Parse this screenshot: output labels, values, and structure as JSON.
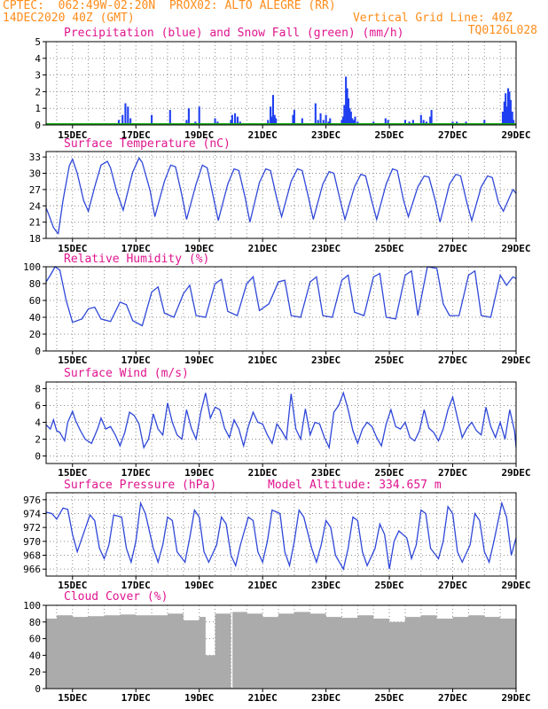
{
  "header": {
    "line1_left": "CPTEC:  062:49W-02:20N  PROX02: ALTO ALEGRE (RR)",
    "line2_left": "14DEC2020 40Z (GMT)",
    "line2_right": "Vertical Grid Line: 40Z",
    "line3_right": "TQ0126L028",
    "model_altitude": "Model Altitude: 334.657 m"
  },
  "colors": {
    "header": "#ff8c1a",
    "title": "#e0158f",
    "line": "#2f47d8",
    "precip": "#1f3ff0",
    "snow": "#18a818",
    "cloud": "#ababab"
  },
  "x_tick_labels": [
    "15DEC",
    "17DEC",
    "19DEC",
    "21DEC",
    "23DEC",
    "25DEC",
    "27DEC",
    "29DEC"
  ],
  "chart_data": [
    {
      "type": "bar",
      "title": "Precipitation (blue) and Snow Fall (green) (mm/h)",
      "xlim": [
        14.1667,
        29.0
      ],
      "ylim": [
        0,
        5
      ],
      "yticks": [
        "0",
        "1",
        "2",
        "3",
        "4",
        "5"
      ],
      "series": [
        {
          "name": "Precipitation",
          "x": [
            16.46,
            16.58,
            16.67,
            16.75,
            16.83,
            17.5,
            18.08,
            18.6,
            18.67,
            18.88,
            19.0,
            19.5,
            19.58,
            20.0,
            20.04,
            20.13,
            20.21,
            20.29,
            21.17,
            21.25,
            21.29,
            21.33,
            21.38,
            21.42,
            21.96,
            22.0,
            22.25,
            22.67,
            22.75,
            22.83,
            22.92,
            23.0,
            23.08,
            23.13,
            23.5,
            23.54,
            23.58,
            23.63,
            23.67,
            23.71,
            23.75,
            23.79,
            23.83,
            23.88,
            23.92,
            24.0,
            24.5,
            24.88,
            24.96,
            25.5,
            25.63,
            25.75,
            26.0,
            26.08,
            26.17,
            26.29,
            26.33,
            27.0,
            27.13,
            27.42,
            28.0,
            28.58,
            28.63,
            28.67,
            28.71,
            28.75,
            28.79,
            28.83,
            28.88,
            28.92
          ],
          "values": [
            0.3,
            0.6,
            1.3,
            1.1,
            0.4,
            0.6,
            0.9,
            0.3,
            1.0,
            0.2,
            1.1,
            0.4,
            0.2,
            0.3,
            0.6,
            0.7,
            0.5,
            0.2,
            0.3,
            1.1,
            0.5,
            1.8,
            0.6,
            0.4,
            0.6,
            0.9,
            0.4,
            1.3,
            0.3,
            0.7,
            0.3,
            0.6,
            0.2,
            0.4,
            0.3,
            0.5,
            1.2,
            2.9,
            2.2,
            1.6,
            1.0,
            0.8,
            0.4,
            0.3,
            0.5,
            0.2,
            0.2,
            0.4,
            0.3,
            0.3,
            0.2,
            0.3,
            0.6,
            0.3,
            0.2,
            0.5,
            0.9,
            0.2,
            0.2,
            0.2,
            0.3,
            0.8,
            1.4,
            1.9,
            1.1,
            2.2,
            2.0,
            1.5,
            0.8,
            0.3
          ]
        },
        {
          "name": "Snow Fall",
          "x": [
            14.1667,
            29.0
          ],
          "values": [
            0,
            0
          ]
        }
      ]
    },
    {
      "type": "line",
      "title": "Surface Temperature (nC)",
      "xlim": [
        14.1667,
        29.0
      ],
      "ylim": [
        18,
        34
      ],
      "yticks": [
        "18",
        "21",
        "24",
        "27",
        "30",
        "33"
      ],
      "series": [
        {
          "name": "Surface Temperature",
          "x": [
            14.1667,
            14.25,
            14.4,
            14.5,
            14.55,
            14.7,
            14.9,
            15.0,
            15.15,
            15.35,
            15.5,
            15.7,
            15.9,
            16.1,
            16.2,
            16.4,
            16.6,
            16.9,
            17.1,
            17.2,
            17.45,
            17.6,
            17.9,
            18.1,
            18.25,
            18.45,
            18.6,
            18.9,
            19.1,
            19.25,
            19.45,
            19.6,
            19.9,
            20.1,
            20.25,
            20.45,
            20.6,
            20.9,
            21.1,
            21.25,
            21.45,
            21.6,
            21.9,
            22.1,
            22.25,
            22.45,
            22.6,
            22.9,
            23.1,
            23.25,
            23.45,
            23.6,
            23.9,
            24.1,
            24.25,
            24.45,
            24.6,
            24.9,
            25.1,
            25.25,
            25.45,
            25.6,
            25.9,
            26.1,
            26.25,
            26.45,
            26.6,
            26.9,
            27.1,
            27.25,
            27.45,
            27.6,
            27.9,
            28.1,
            28.25,
            28.45,
            28.6,
            28.9,
            29.0
          ],
          "values": [
            23.6,
            22.4,
            20.0,
            19.2,
            18.9,
            25.0,
            31.4,
            32.6,
            30.0,
            25.0,
            23.0,
            27.5,
            31.5,
            32.2,
            31.0,
            26.5,
            23.2,
            30.2,
            32.8,
            32.0,
            26.8,
            22.0,
            28.5,
            31.5,
            31.2,
            26.0,
            21.5,
            28.0,
            31.5,
            31.0,
            25.5,
            21.3,
            28.0,
            30.8,
            30.5,
            25.5,
            21.0,
            28.3,
            30.8,
            30.5,
            25.3,
            22.0,
            28.5,
            30.8,
            30.5,
            25.5,
            21.5,
            28.0,
            30.3,
            30.0,
            25.0,
            21.5,
            27.5,
            29.8,
            29.5,
            24.8,
            21.5,
            28.0,
            30.8,
            30.5,
            25.0,
            22.0,
            27.5,
            29.5,
            29.3,
            25.0,
            21.0,
            28.0,
            29.8,
            29.5,
            24.5,
            21.3,
            27.5,
            29.5,
            29.2,
            24.5,
            23.0,
            27.0,
            26.3
          ]
        }
      ]
    },
    {
      "type": "line",
      "title": "Relative Humidity (%)",
      "xlim": [
        14.1667,
        29.0
      ],
      "ylim": [
        0,
        100
      ],
      "yticks": [
        "0",
        "20",
        "40",
        "60",
        "80",
        "100"
      ],
      "series": [
        {
          "name": "Relative Humidity",
          "x": [
            14.1667,
            14.3,
            14.45,
            14.6,
            14.8,
            15.0,
            15.3,
            15.5,
            15.7,
            15.9,
            16.2,
            16.5,
            16.7,
            16.9,
            17.2,
            17.5,
            17.7,
            17.9,
            18.2,
            18.5,
            18.7,
            18.9,
            19.2,
            19.5,
            19.7,
            19.9,
            20.2,
            20.5,
            20.7,
            20.9,
            21.2,
            21.5,
            21.7,
            21.9,
            22.2,
            22.5,
            22.7,
            22.9,
            23.2,
            23.5,
            23.7,
            23.9,
            24.2,
            24.5,
            24.7,
            24.9,
            25.2,
            25.5,
            25.7,
            25.9,
            26.2,
            26.5,
            26.7,
            26.9,
            27.2,
            27.5,
            27.7,
            27.9,
            28.2,
            28.5,
            28.7,
            28.9,
            29.0
          ],
          "values": [
            82,
            90,
            100,
            96,
            60,
            34,
            38,
            50,
            52,
            38,
            35,
            58,
            55,
            36,
            30,
            70,
            76,
            45,
            40,
            68,
            78,
            42,
            40,
            80,
            85,
            47,
            42,
            80,
            88,
            48,
            56,
            82,
            84,
            42,
            40,
            82,
            88,
            42,
            40,
            84,
            90,
            46,
            42,
            88,
            92,
            40,
            38,
            90,
            95,
            42,
            100,
            98,
            56,
            42,
            42,
            90,
            95,
            42,
            40,
            90,
            78,
            88,
            86
          ]
        }
      ]
    },
    {
      "type": "line",
      "title": "Surface Wind (m/s)",
      "xlim": [
        14.1667,
        29.0
      ],
      "ylim": [
        -0.9,
        8.8
      ],
      "yticks": [
        "0",
        "2",
        "4",
        "6",
        "8"
      ],
      "series": [
        {
          "name": "Surface Wind",
          "x": [
            14.1667,
            14.3,
            14.4,
            14.5,
            14.6,
            14.75,
            14.85,
            15.0,
            15.1,
            15.25,
            15.4,
            15.6,
            15.8,
            15.9,
            16.05,
            16.2,
            16.35,
            16.5,
            16.65,
            16.8,
            16.95,
            17.1,
            17.25,
            17.4,
            17.55,
            17.7,
            17.85,
            18.0,
            18.15,
            18.3,
            18.45,
            18.6,
            18.75,
            18.9,
            19.05,
            19.2,
            19.35,
            19.5,
            19.65,
            19.8,
            19.95,
            20.1,
            20.25,
            20.4,
            20.55,
            20.7,
            20.85,
            21.0,
            21.15,
            21.3,
            21.45,
            21.6,
            21.75,
            21.9,
            22.05,
            22.2,
            22.35,
            22.5,
            22.65,
            22.8,
            22.95,
            23.1,
            23.25,
            23.4,
            23.55,
            23.7,
            23.85,
            24.0,
            24.15,
            24.3,
            24.45,
            24.6,
            24.75,
            24.9,
            25.05,
            25.2,
            25.35,
            25.5,
            25.65,
            25.8,
            25.95,
            26.1,
            26.25,
            26.4,
            26.55,
            26.7,
            26.85,
            27.0,
            27.15,
            27.3,
            27.45,
            27.6,
            27.75,
            27.9,
            28.05,
            28.2,
            28.35,
            28.5,
            28.65,
            28.8,
            28.95,
            29.0
          ],
          "values": [
            3.7,
            3.2,
            4.3,
            3.0,
            2.8,
            1.8,
            4.0,
            5.3,
            4.2,
            3.0,
            2.0,
            1.5,
            3.3,
            4.5,
            3.2,
            3.5,
            2.5,
            1.2,
            2.8,
            5.2,
            4.8,
            3.8,
            1.0,
            2.0,
            5.0,
            3.2,
            2.5,
            6.3,
            4.0,
            2.5,
            2.0,
            5.5,
            3.3,
            2.0,
            5.2,
            7.5,
            4.5,
            5.8,
            5.5,
            3.3,
            2.2,
            4.3,
            3.2,
            1.2,
            3.5,
            5.2,
            4.0,
            3.8,
            2.5,
            1.5,
            3.8,
            3.0,
            2.0,
            7.4,
            3.2,
            2.0,
            5.6,
            2.5,
            4.0,
            3.8,
            2.2,
            1.0,
            5.2,
            6.0,
            7.5,
            5.5,
            3.0,
            1.5,
            3.2,
            4.0,
            3.5,
            2.2,
            1.2,
            3.8,
            5.5,
            3.5,
            3.2,
            4.0,
            2.2,
            1.8,
            3.0,
            5.5,
            3.3,
            2.8,
            1.8,
            3.2,
            5.5,
            7.0,
            4.5,
            2.2,
            3.3,
            4.0,
            3.0,
            2.5,
            5.8,
            3.5,
            2.2,
            4.0,
            2.0,
            5.5,
            3.0,
            1.0
          ]
        }
      ]
    },
    {
      "type": "line",
      "title": "Surface Pressure (hPa)",
      "xlim": [
        14.1667,
        29.0
      ],
      "ylim": [
        965,
        977
      ],
      "yticks": [
        "966",
        "968",
        "970",
        "972",
        "974",
        "976"
      ],
      "series": [
        {
          "name": "Surface Pressure",
          "x": [
            14.1667,
            14.35,
            14.5,
            14.7,
            14.85,
            15.0,
            15.15,
            15.3,
            15.55,
            15.7,
            15.85,
            16.0,
            16.15,
            16.3,
            16.55,
            16.7,
            16.85,
            17.0,
            17.15,
            17.3,
            17.55,
            17.7,
            17.85,
            18.0,
            18.15,
            18.3,
            18.55,
            18.7,
            18.85,
            19.0,
            19.15,
            19.3,
            19.55,
            19.7,
            19.85,
            20.0,
            20.15,
            20.3,
            20.55,
            20.7,
            20.85,
            21.0,
            21.15,
            21.3,
            21.55,
            21.7,
            21.85,
            22.0,
            22.15,
            22.3,
            22.55,
            22.7,
            22.85,
            23.0,
            23.15,
            23.3,
            23.55,
            23.7,
            23.85,
            24.0,
            24.15,
            24.3,
            24.55,
            24.7,
            24.85,
            25.0,
            25.15,
            25.3,
            25.55,
            25.7,
            25.85,
            26.0,
            26.15,
            26.3,
            26.55,
            26.7,
            26.85,
            27.0,
            27.15,
            27.3,
            27.55,
            27.7,
            27.85,
            28.0,
            28.15,
            28.3,
            28.55,
            28.7,
            28.85,
            29.0
          ],
          "values": [
            974.2,
            974.0,
            973.2,
            974.8,
            974.6,
            971.0,
            968.5,
            970.5,
            973.8,
            973.0,
            969.0,
            967.5,
            969.5,
            973.8,
            973.5,
            969.0,
            967.0,
            970.0,
            975.5,
            974.0,
            969.0,
            967.0,
            969.5,
            973.5,
            973.0,
            968.5,
            967.0,
            970.5,
            974.5,
            973.5,
            968.5,
            967.0,
            969.5,
            973.5,
            972.5,
            968.0,
            966.5,
            969.5,
            973.5,
            973.0,
            968.5,
            967.0,
            970.0,
            974.5,
            974.0,
            968.5,
            966.5,
            970.0,
            974.5,
            973.5,
            969.0,
            967.0,
            969.5,
            973.0,
            972.0,
            968.0,
            966.0,
            969.0,
            973.5,
            973.0,
            968.5,
            966.5,
            969.0,
            972.5,
            971.0,
            966.0,
            970.0,
            971.5,
            970.5,
            967.5,
            969.5,
            974.5,
            974.0,
            969.0,
            967.5,
            970.0,
            975.0,
            974.0,
            968.5,
            967.0,
            969.5,
            974.0,
            973.0,
            968.5,
            967.0,
            970.0,
            975.5,
            973.5,
            968.0,
            970.5
          ]
        }
      ]
    },
    {
      "type": "area",
      "title": "Cloud Cover (%)",
      "xlim": [
        14.1667,
        29.0
      ],
      "ylim": [
        0,
        100
      ],
      "yticks": [
        "0",
        "20",
        "40",
        "60",
        "80",
        "100"
      ],
      "series": [
        {
          "name": "Cloud Cover",
          "x": [
            14.1667,
            14.5,
            15.0,
            15.5,
            16.0,
            16.5,
            17.0,
            17.5,
            18.0,
            18.5,
            19.0,
            19.2,
            19.5,
            19.9,
            20.0,
            20.05,
            20.5,
            21.0,
            21.5,
            22.0,
            22.5,
            23.0,
            23.5,
            24.0,
            24.5,
            25.0,
            25.5,
            26.0,
            26.5,
            27.0,
            27.5,
            28.0,
            28.5,
            29.0
          ],
          "values": [
            84,
            88,
            86,
            87,
            88,
            89,
            88,
            88,
            90,
            82,
            86,
            40,
            90,
            90,
            1,
            92,
            90,
            86,
            90,
            92,
            90,
            86,
            85,
            88,
            84,
            80,
            86,
            88,
            84,
            86,
            88,
            86,
            84,
            86
          ]
        }
      ]
    }
  ]
}
